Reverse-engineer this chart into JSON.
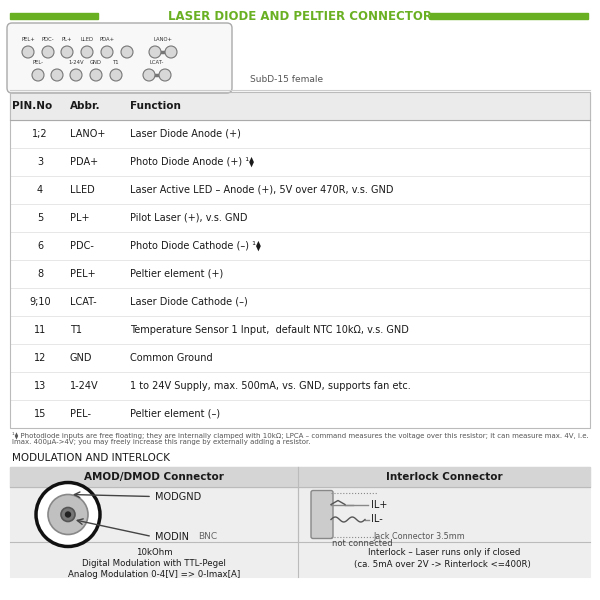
{
  "title": "LASER DIODE AND PELTIER CONNECTOR",
  "title_color": "#6ab023",
  "bg_color": "#ffffff",
  "table_header": [
    "PIN.No",
    "Abbr.",
    "Function"
  ],
  "table_rows": [
    [
      "1;2",
      "LANO+",
      "Laser Diode Anode (+)"
    ],
    [
      "3",
      "PDA+",
      "Photo Diode Anode (+) ¹⧫"
    ],
    [
      "4",
      "LLED",
      "Laser Active LED – Anode (+), 5V over 470R, v.s. GND"
    ],
    [
      "5",
      "PL+",
      "Pilot Laser (+), v.s. GND"
    ],
    [
      "6",
      "PDC-",
      "Photo Diode Cathode (–) ¹⧫"
    ],
    [
      "8",
      "PEL+",
      "Peltier element (+)"
    ],
    [
      "9;10",
      "LCAT-",
      "Laser Diode Cathode (–)"
    ],
    [
      "11",
      "T1",
      "Temperature Sensor 1 Input,  default NTC 10kΩ, v.s. GND"
    ],
    [
      "12",
      "GND",
      "Common Ground"
    ],
    [
      "13",
      "1-24V",
      "1 to 24V Supply, max. 500mA, vs. GND, supports fan etc."
    ],
    [
      "15",
      "PEL-",
      "Peltier element (–)"
    ]
  ],
  "footnote_line1": "¹⧫ Photodiode inputs are free floating; they are internally clamped with 10kΩ; LPCA – command measures the voltage over this resistor; it can measure max. 4V, i.e.",
  "footnote_line2": "Imax. 400µA->4V; you may freely increase this range by externally adding a resistor.",
  "subd_label": "SubD-15 female",
  "mod_title": "MODULATION AND INTERLOCK",
  "amod_header": "AMOD/DMOD Connector",
  "interlock_header": "Interlock Connector",
  "amod_note": "10kOhm\nDigital Modulation with TTL-Pegel\nAnalog Modulation 0-4[V] => 0-Imax[A]",
  "interlock_note": "Interlock – Laser runs only if closed\n(ca. 5mA over 2V -> R",
  "interlock_note2": "interlock",
  "interlock_note3": " <=400R)",
  "green_color": "#6ab023",
  "dark_text": "#1a1a1a",
  "gray_text": "#555555",
  "light_text": "#888888"
}
